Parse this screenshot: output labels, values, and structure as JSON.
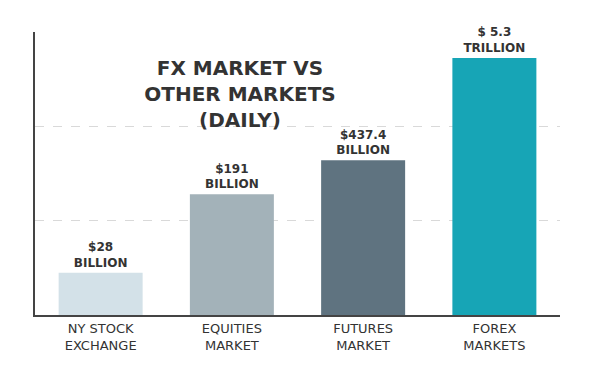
{
  "chart_data": {
    "type": "bar",
    "title": "FX MARKET VS\nOTHER MARKETS\n(DAILY)",
    "categories": [
      "NY STOCK\nEXCHANGE",
      "EQUITIES\nMARKET",
      "FUTURES\nMARKET",
      "FOREX\nMARKETS"
    ],
    "values": [
      28,
      191,
      437.4,
      5300
    ],
    "value_labels": [
      "$28\nBILLION",
      "$191\nBILLION",
      "$437.4\nBILLION",
      "$ 5.3\nTRILLION"
    ],
    "colors": [
      "#d3e1e8",
      "#a3b2b9",
      "#5f7380",
      "#17a5b6"
    ],
    "log": "y",
    "ylim": [
      10,
      10000
    ],
    "yticks": [
      10,
      100,
      1000,
      10000
    ],
    "grid": true,
    "data_labels": true,
    "tick_labels": false
  }
}
